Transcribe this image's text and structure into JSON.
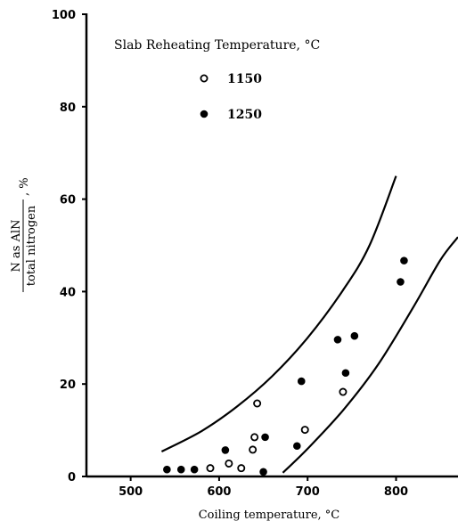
{
  "chart_data": {
    "type": "scatter",
    "title": "",
    "xlabel": "Coiling temperature, °C",
    "ylabel": {
      "numerator": "N as AlN",
      "denominator": "total nitrogen",
      "suffix": ", %"
    },
    "xlim": [
      450,
      870
    ],
    "ylim": [
      0,
      100
    ],
    "x_ticks": [
      500,
      600,
      700,
      800
    ],
    "y_ticks": [
      0,
      20,
      40,
      60,
      80,
      100
    ],
    "grid": false,
    "legend": {
      "title": "Slab Reheating Temperature, °C",
      "placement": "top-left"
    },
    "series": [
      {
        "name": "1150",
        "marker": "open-circle",
        "points": [
          {
            "x": 590,
            "y": 1.8
          },
          {
            "x": 611,
            "y": 2.8
          },
          {
            "x": 625,
            "y": 1.8
          },
          {
            "x": 638,
            "y": 5.8
          },
          {
            "x": 640,
            "y": 8.5
          },
          {
            "x": 643,
            "y": 15.8
          },
          {
            "x": 697,
            "y": 10.1
          },
          {
            "x": 740,
            "y": 18.3
          }
        ]
      },
      {
        "name": "1250",
        "marker": "filled-circle",
        "points": [
          {
            "x": 541,
            "y": 1.5
          },
          {
            "x": 557,
            "y": 1.5
          },
          {
            "x": 572,
            "y": 1.5
          },
          {
            "x": 607,
            "y": 5.7
          },
          {
            "x": 650,
            "y": 1.0
          },
          {
            "x": 652,
            "y": 8.5
          },
          {
            "x": 688,
            "y": 6.6
          },
          {
            "x": 693,
            "y": 20.6
          },
          {
            "x": 734,
            "y": 29.6
          },
          {
            "x": 743,
            "y": 22.4
          },
          {
            "x": 753,
            "y": 30.4
          },
          {
            "x": 805,
            "y": 42.1
          },
          {
            "x": 809,
            "y": 46.7
          }
        ]
      }
    ],
    "bands": [
      {
        "name": "",
        "points": [
          [
            535,
            5.4
          ],
          [
            580,
            9.8
          ],
          [
            620,
            15.1
          ],
          [
            660,
            21.7
          ],
          [
            700,
            30.0
          ],
          [
            740,
            40.3
          ],
          [
            770,
            50.0
          ],
          [
            800,
            65.0
          ]
        ]
      },
      {
        "name": "",
        "points": [
          [
            672,
            0.8
          ],
          [
            700,
            6.0
          ],
          [
            740,
            14.3
          ],
          [
            780,
            24.3
          ],
          [
            820,
            36.8
          ],
          [
            850,
            46.8
          ],
          [
            870,
            51.8
          ]
        ]
      }
    ]
  }
}
